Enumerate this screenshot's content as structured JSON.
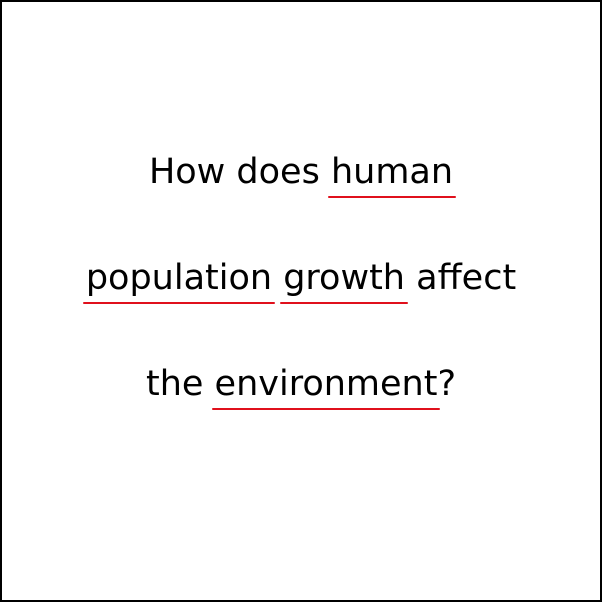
{
  "lines": [
    [
      {
        "text": "How does ",
        "underlined": false
      },
      {
        "text": "human",
        "underlined": true
      }
    ],
    [
      {
        "text": "population",
        "underlined": true
      },
      {
        "text": " ",
        "underlined": false
      },
      {
        "text": "growth",
        "underlined": true
      },
      {
        "text": " affect",
        "underlined": false
      }
    ],
    [
      {
        "text": "the ",
        "underlined": false
      },
      {
        "text": "environment",
        "underlined": true
      },
      {
        "text": "?",
        "underlined": false
      }
    ]
  ],
  "underline_color": "#e0101c"
}
